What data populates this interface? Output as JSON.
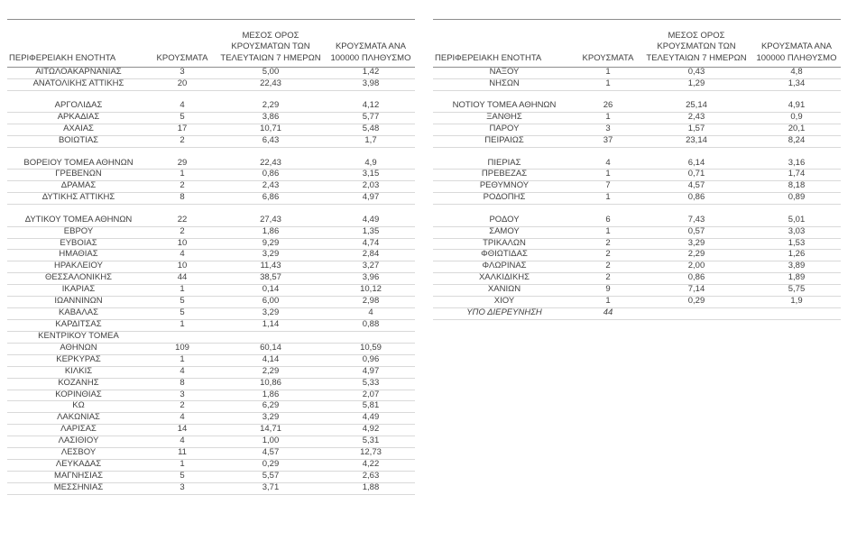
{
  "colors": {
    "text": "#3f3f3f",
    "header_line": "#8c8c8c",
    "row_line": "#d9d9d9",
    "background": "#ffffff"
  },
  "chart_data": {
    "type": "table",
    "headers": [
      "ΠΕΡΙΦΕΡΕΙΑΚΗ ΕΝΟΤΗΤΑ",
      "ΚΡΟΥΣΜΑΤΑ",
      "ΜΕΣΟΣ ΟΡΟΣ ΚΡΟΥΣΜΑΤΩΝ ΤΩΝ ΤΕΛΕΥΤΑΙΩΝ 7 ΗΜΕΡΩΝ",
      "ΚΡΟΥΣΜΑΤΑ ΑΝΑ 100000 ΠΛΗΘΥΣΜΟ"
    ],
    "tables": [
      {
        "name": "left",
        "italic_rows": [],
        "rows": [
          [
            "ΑΙΤΩΛΟΑΚΑΡΝΑΝΙΑΣ",
            "3",
            "5,00",
            "1,42"
          ],
          [
            "ΑΝΑΤΟΛΙΚΗΣ ΑΤΤΙΚΗΣ",
            "20",
            "22,43",
            "3,98"
          ],
          [
            "",
            "",
            "",
            ""
          ],
          [
            "ΑΡΓΟΛΙΔΑΣ",
            "4",
            "2,29",
            "4,12"
          ],
          [
            "ΑΡΚΑΔΙΑΣ",
            "5",
            "3,86",
            "5,77"
          ],
          [
            "ΑΧΑΪΑΣ",
            "17",
            "10,71",
            "5,48"
          ],
          [
            "ΒΟΙΩΤΙΑΣ",
            "2",
            "6,43",
            "1,7"
          ],
          [
            "",
            "",
            "",
            ""
          ],
          [
            "ΒΟΡΕΙΟΥ ΤΟΜΕΑ ΑΘΗΝΩΝ",
            "29",
            "22,43",
            "4,9"
          ],
          [
            "ΓΡΕΒΕΝΩΝ",
            "1",
            "0,86",
            "3,15"
          ],
          [
            "ΔΡΑΜΑΣ",
            "2",
            "2,43",
            "2,03"
          ],
          [
            "ΔΥΤΙΚΗΣ ΑΤΤΙΚΗΣ",
            "8",
            "6,86",
            "4,97"
          ],
          [
            "",
            "",
            "",
            ""
          ],
          [
            "ΔΥΤΙΚΟΥ ΤΟΜΕΑ ΑΘΗΝΩΝ",
            "22",
            "27,43",
            "4,49"
          ],
          [
            "ΕΒΡΟΥ",
            "2",
            "1,86",
            "1,35"
          ],
          [
            "ΕΥΒΟΙΑΣ",
            "10",
            "9,29",
            "4,74"
          ],
          [
            "ΗΜΑΘΙΑΣ",
            "4",
            "3,29",
            "2,84"
          ],
          [
            "ΗΡΑΚΛΕΙΟΥ",
            "10",
            "11,43",
            "3,27"
          ],
          [
            "ΘΕΣΣΑΛΟΝΙΚΗΣ",
            "44",
            "38,57",
            "3,96"
          ],
          [
            "ΙΚΑΡΙΑΣ",
            "1",
            "0,14",
            "10,12"
          ],
          [
            "ΙΩΑΝΝΙΝΩΝ",
            "5",
            "6,00",
            "2,98"
          ],
          [
            "ΚΑΒΑΛΑΣ",
            "5",
            "3,29",
            "4"
          ],
          [
            "ΚΑΡΔΙΤΣΑΣ",
            "1",
            "1,14",
            "0,88"
          ],
          [
            "ΚΕΝΤΡΙΚΟΥ ΤΟΜΕΑ",
            "",
            "",
            ""
          ],
          [
            "ΑΘΗΝΩΝ",
            "109",
            "60,14",
            "10,59"
          ],
          [
            "ΚΕΡΚΥΡΑΣ",
            "1",
            "4,14",
            "0,96"
          ],
          [
            "ΚΙΛΚΙΣ",
            "4",
            "2,29",
            "4,97"
          ],
          [
            "ΚΟΖΑΝΗΣ",
            "8",
            "10,86",
            "5,33"
          ],
          [
            "ΚΟΡΙΝΘΙΑΣ",
            "3",
            "1,86",
            "2,07"
          ],
          [
            "ΚΩ",
            "2",
            "6,29",
            "5,81"
          ],
          [
            "ΛΑΚΩΝΙΑΣ",
            "4",
            "3,29",
            "4,49"
          ],
          [
            "ΛΑΡΙΣΑΣ",
            "14",
            "14,71",
            "4,92"
          ],
          [
            "ΛΑΣΙΘΙΟΥ",
            "4",
            "1,00",
            "5,31"
          ],
          [
            "ΛΕΣΒΟΥ",
            "11",
            "4,57",
            "12,73"
          ],
          [
            "ΛΕΥΚΑΔΑΣ",
            "1",
            "0,29",
            "4,22"
          ],
          [
            "ΜΑΓΝΗΣΙΑΣ",
            "5",
            "5,57",
            "2,63"
          ],
          [
            "ΜΕΣΣΗΝΙΑΣ",
            "3",
            "3,71",
            "1,88"
          ]
        ]
      },
      {
        "name": "right",
        "italic_rows": [
          21
        ],
        "rows": [
          [
            "ΝΑΞΟΥ",
            "1",
            "0,43",
            "4,8"
          ],
          [
            "ΝΗΣΩΝ",
            "1",
            "1,29",
            "1,34"
          ],
          [
            "",
            "",
            "",
            ""
          ],
          [
            "ΝΟΤΙΟΥ ΤΟΜΕΑ ΑΘΗΝΩΝ",
            "26",
            "25,14",
            "4,91"
          ],
          [
            "ΞΑΝΘΗΣ",
            "1",
            "2,43",
            "0,9"
          ],
          [
            "ΠΑΡΟΥ",
            "3",
            "1,57",
            "20,1"
          ],
          [
            "ΠΕΙΡΑΙΩΣ",
            "37",
            "23,14",
            "8,24"
          ],
          [
            "",
            "",
            "",
            ""
          ],
          [
            "ΠΙΕΡΙΑΣ",
            "4",
            "6,14",
            "3,16"
          ],
          [
            "ΠΡΕΒΕΖΑΣ",
            "1",
            "0,71",
            "1,74"
          ],
          [
            "ΡΕΘΥΜΝΟΥ",
            "7",
            "4,57",
            "8,18"
          ],
          [
            "ΡΟΔΟΠΗΣ",
            "1",
            "0,86",
            "0,89"
          ],
          [
            "",
            "",
            "",
            ""
          ],
          [
            "ΡΟΔΟΥ",
            "6",
            "7,43",
            "5,01"
          ],
          [
            "ΣΑΜΟΥ",
            "1",
            "0,57",
            "3,03"
          ],
          [
            "ΤΡΙΚΑΛΩΝ",
            "2",
            "3,29",
            "1,53"
          ],
          [
            "ΦΘΙΩΤΙΔΑΣ",
            "2",
            "2,29",
            "1,26"
          ],
          [
            "ΦΛΩΡΙΝΑΣ",
            "2",
            "2,00",
            "3,89"
          ],
          [
            "ΧΑΛΚΙΔΙΚΗΣ",
            "2",
            "0,86",
            "1,89"
          ],
          [
            "ΧΑΝΙΩΝ",
            "9",
            "7,14",
            "5,75"
          ],
          [
            "ΧΙΟΥ",
            "1",
            "0,29",
            "1,9"
          ],
          [
            "ΥΠΟ ΔΙΕΡΕΥΝΗΣΗ",
            "44",
            "",
            ""
          ]
        ]
      }
    ]
  }
}
